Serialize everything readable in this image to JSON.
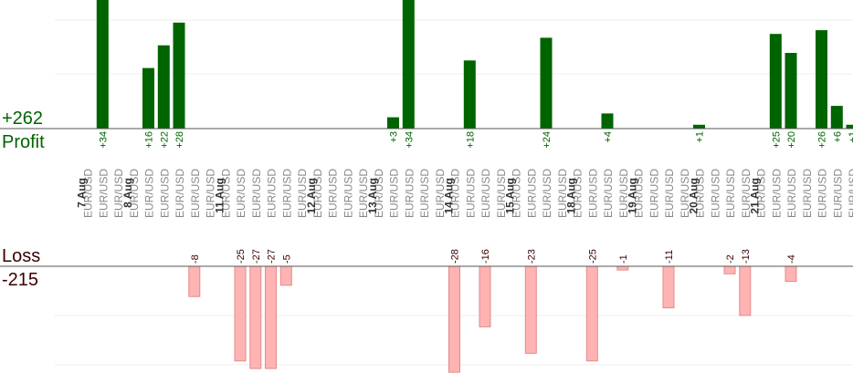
{
  "summary": {
    "profit_total": "+262",
    "profit_label": "Profit",
    "loss_label": "Loss",
    "loss_total": "-215"
  },
  "colors": {
    "profit_bar": "#006400",
    "profit_text": "#006400",
    "loss_bar": "#ffb3b3",
    "loss_bar_edge": "#e48a8a",
    "loss_text": "#3a0000",
    "category_text": "#888888",
    "date_text": "#333333",
    "axis": "#555555",
    "grid": "#ececec"
  },
  "chart_data": {
    "type": "bar",
    "grid": true,
    "categories": [
      "EUR/USD",
      "EUR/USD",
      "EUR/USD",
      "EUR/USD",
      "EUR/USD",
      "EUR/USD",
      "EUR/USD",
      "EUR/USD",
      "EUR/USD",
      "EUR/USD",
      "EUR/USD",
      "EUR/USD",
      "EUR/USD",
      "EUR/USD",
      "EUR/USD",
      "EUR/USD",
      "EUR/USD",
      "EUR/USD",
      "EUR/USD",
      "EUR/USD",
      "EUR/USD",
      "EUR/USD",
      "EUR/USD",
      "EUR/USD",
      "EUR/USD",
      "EUR/USD",
      "EUR/USD",
      "EUR/USD",
      "EUR/USD",
      "EUR/USD",
      "EUR/USD",
      "EUR/USD",
      "EUR/USD",
      "EUR/USD",
      "EUR/USD",
      "EUR/USD",
      "EUR/USD",
      "EUR/USD",
      "EUR/USD",
      "EUR/USD",
      "EUR/USD",
      "EUR/USD",
      "EUR/USD",
      "EUR/USD",
      "EUR/USD",
      "EUR/USD",
      "EUR/USD",
      "EUR/USD",
      "EUR/USD",
      "EUR/USD",
      "EUR/USD"
    ],
    "date_labels": [
      {
        "label": "7 Aug",
        "index": 0
      },
      {
        "label": "8 Aug",
        "index": 3
      },
      {
        "label": "11 Aug",
        "index": 9
      },
      {
        "label": "12 Aug",
        "index": 15
      },
      {
        "label": "13 Aug",
        "index": 19
      },
      {
        "label": "14 Aug",
        "index": 24
      },
      {
        "label": "15 Aug",
        "index": 28
      },
      {
        "label": "18 Aug",
        "index": 32
      },
      {
        "label": "19 Aug",
        "index": 36
      },
      {
        "label": "20 Aug",
        "index": 40
      },
      {
        "label": "21 Aug",
        "index": 44
      }
    ],
    "series": [
      {
        "values": [
          null,
          34,
          null,
          null,
          16,
          22,
          28,
          null,
          null,
          null,
          null,
          null,
          null,
          null,
          null,
          null,
          null,
          null,
          null,
          null,
          null,
          null,
          null,
          null,
          null,
          null,
          null,
          null,
          null,
          null,
          null,
          null,
          null,
          null,
          null,
          null,
          null,
          null,
          null,
          null,
          null,
          null,
          null,
          null,
          null,
          null,
          null,
          null,
          null,
          null,
          null
        ],
        "labels": [
          "",
          "+34",
          "",
          "",
          "+16",
          "+22",
          "+28",
          "",
          "",
          "",
          "",
          "",
          "",
          "",
          "",
          "",
          "",
          "",
          "",
          "",
          "",
          "",
          "",
          "",
          "",
          "",
          "",
          "",
          "",
          "",
          "",
          "",
          "",
          "",
          "",
          "",
          "",
          "",
          "",
          "",
          "",
          "",
          "",
          "",
          "",
          "",
          "",
          "",
          "",
          "",
          ""
        ]
      },
      {
        "values": [
          null,
          null,
          null,
          null,
          null,
          null,
          null,
          -8,
          null,
          null,
          null,
          null,
          null,
          null,
          null,
          null,
          null,
          null,
          null,
          null,
          null,
          null,
          null,
          null,
          null,
          null,
          null,
          null,
          null,
          null,
          null,
          null,
          null,
          null,
          null,
          null,
          null,
          null,
          null,
          null,
          null,
          null,
          null,
          null,
          null,
          null,
          null,
          null,
          null,
          null,
          null
        ],
        "labels": [
          "",
          "",
          "",
          "",
          "",
          "",
          "",
          "-8",
          "",
          "",
          "",
          "",
          "",
          "",
          "",
          "",
          "",
          "",
          "",
          "",
          "",
          "",
          "",
          "",
          "",
          "",
          "",
          "",
          "",
          "",
          "",
          "",
          "",
          "",
          "",
          "",
          "",
          "",
          "",
          "",
          "",
          "",
          "",
          "",
          "",
          "",
          "",
          "",
          "",
          "",
          ""
        ]
      }
    ],
    "profit_values": [
      null,
      34,
      null,
      null,
      16,
      22,
      28,
      null,
      null,
      null,
      null,
      null,
      null,
      null,
      null,
      null,
      null,
      null,
      null,
      null,
      3,
      34,
      null,
      null,
      null,
      18,
      null,
      null,
      null,
      null,
      24,
      null,
      null,
      null,
      4,
      null,
      null,
      null,
      null,
      null,
      1,
      null,
      null,
      null,
      null,
      25,
      20,
      null,
      26,
      6,
      1
    ],
    "loss_values": [
      null,
      null,
      null,
      null,
      null,
      null,
      null,
      -8,
      null,
      null,
      -25,
      -27,
      -27,
      -5,
      null,
      null,
      null,
      null,
      null,
      null,
      null,
      null,
      null,
      null,
      -28,
      null,
      -16,
      null,
      null,
      -23,
      null,
      null,
      null,
      -25,
      null,
      -1,
      null,
      null,
      -11,
      null,
      null,
      null,
      -2,
      -13,
      null,
      null,
      -4,
      null,
      null,
      null,
      null
    ],
    "profit_labels": [
      "",
      "+34",
      "",
      "",
      "+16",
      "+22",
      "+28",
      "",
      "",
      "",
      "",
      "",
      "",
      "",
      "",
      "",
      "",
      "",
      "",
      "",
      "+3",
      "+34",
      "",
      "",
      "",
      "+18",
      "",
      "",
      "",
      "",
      "+24",
      "",
      "",
      "",
      "+4",
      "",
      "",
      "",
      "",
      "",
      "+1",
      "",
      "",
      "",
      "",
      "+25",
      "+20",
      "",
      "+26",
      "+6",
      "+1"
    ],
    "loss_labels": [
      "",
      "",
      "",
      "",
      "",
      "",
      "",
      "-8",
      "",
      "",
      "-25",
      "-27",
      "-27",
      "-5",
      "",
      "",
      "",
      "",
      "",
      "",
      "",
      "",
      "",
      "",
      "-28",
      "",
      "-16",
      "",
      "",
      "-23",
      "",
      "",
      "",
      "-25",
      "",
      "-1",
      "",
      "",
      "-11",
      "",
      "",
      "",
      "-2",
      "-13",
      "",
      "",
      "-4",
      "",
      "",
      "",
      ""
    ]
  }
}
